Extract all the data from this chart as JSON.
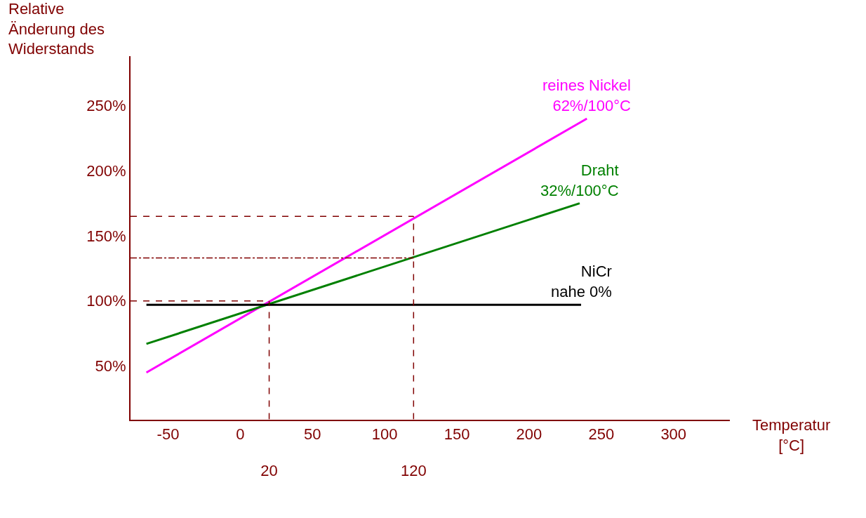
{
  "chart_data": {
    "type": "line",
    "xlabel": "Temperatur\n[°C]",
    "ylabel": "Relative\nÄnderung des\nWiderstands",
    "xlim": [
      -76,
      339
    ],
    "xticks": [
      -50,
      0,
      50,
      100,
      150,
      200,
      250,
      300
    ],
    "x2lim": [
      -76,
      339
    ],
    "x2ticks": [
      20,
      120
    ],
    "ylim": [
      9,
      288
    ],
    "yticks": [
      {
        "value": 50,
        "label": "50%"
      },
      {
        "value": 100,
        "label": "100%"
      },
      {
        "value": 150,
        "label": "150%"
      },
      {
        "value": 200,
        "label": "200%"
      },
      {
        "value": 250,
        "label": "250%"
      }
    ],
    "marker": "none",
    "line_style": "solid",
    "series": [
      {
        "name": "reines Nickel\n62%/100°C",
        "color": "#ff00ff",
        "x": [
          -65,
          240
        ],
        "values": [
          45,
          240
        ]
      },
      {
        "name": "Draht\n32%/100°C",
        "color": "#008000",
        "x": [
          -65,
          235
        ],
        "values": [
          67,
          175
        ]
      },
      {
        "name": "NiCr\nnahe 0%",
        "color": "#000000",
        "x": [
          -65,
          236
        ],
        "values": [
          97,
          97
        ]
      },
      {
        "color": "#800000",
        "line_style": "dashed",
        "x": [
          -76,
          20
        ],
        "values": [
          100,
          100
        ]
      },
      {
        "color": "#800000",
        "line_style": "dashed",
        "x": [
          20,
          20
        ],
        "values": [
          9,
          100
        ]
      },
      {
        "color": "#800000",
        "line_style": "dashed",
        "x": [
          -76,
          120
        ],
        "values": [
          165,
          165
        ]
      },
      {
        "color": "#800000",
        "line_style": "dashed",
        "x": [
          120,
          120
        ],
        "values": [
          9,
          165
        ]
      },
      {
        "color": "#800000",
        "line_style": "dashdot",
        "x": [
          -76,
          120
        ],
        "values": [
          133,
          133
        ]
      }
    ]
  }
}
